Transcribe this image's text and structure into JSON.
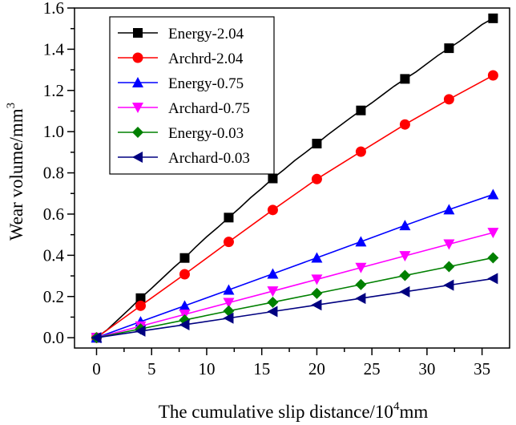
{
  "chart_data": {
    "type": "line",
    "title": "",
    "xlabel": "The cumulative slip distance/10",
    "xlabel_sup": "4",
    "xlabel_unit": "mm",
    "ylabel": "Wear volume/mm",
    "ylabel_sup": "3",
    "xlim": [
      -2,
      37.5
    ],
    "ylim": [
      -0.05,
      1.6
    ],
    "xticks": [
      0,
      5,
      10,
      15,
      20,
      25,
      30,
      35
    ],
    "yticks": [
      0.0,
      0.2,
      0.4,
      0.6,
      0.8,
      1.0,
      1.2,
      1.4,
      1.6
    ],
    "ytick_labels": [
      "0.0",
      "0.2",
      "0.4",
      "0.6",
      "0.8",
      "1.0",
      "1.2",
      "1.4",
      "1.6"
    ],
    "grid": false,
    "legend_position": "top-left",
    "series": [
      {
        "name": "Energy-2.04",
        "color": "#000000",
        "marker": "square",
        "line_x": [
          0,
          1,
          2,
          3,
          4,
          5,
          6,
          7,
          8,
          9,
          10,
          11,
          12,
          13,
          14,
          15,
          16,
          17,
          18,
          19,
          20,
          21,
          22,
          23,
          24,
          25,
          26,
          27,
          28,
          29,
          30,
          31,
          32,
          33,
          34,
          35,
          36
        ],
        "line_y": [
          0,
          0.04,
          0.09,
          0.14,
          0.192,
          0.24,
          0.29,
          0.34,
          0.387,
          0.44,
          0.49,
          0.535,
          0.583,
          0.63,
          0.68,
          0.725,
          0.773,
          0.815,
          0.86,
          0.9,
          0.942,
          0.985,
          1.025,
          1.065,
          1.103,
          1.14,
          1.18,
          1.22,
          1.256,
          1.29,
          1.33,
          1.37,
          1.405,
          1.44,
          1.48,
          1.52,
          1.55
        ],
        "x": [
          0,
          4,
          8,
          12,
          16,
          20,
          24,
          28,
          32,
          36
        ],
        "y": [
          0,
          0.192,
          0.387,
          0.583,
          0.773,
          0.942,
          1.103,
          1.256,
          1.405,
          1.55
        ]
      },
      {
        "name": "Archrd-2.04",
        "color": "#ff0000",
        "marker": "circle",
        "x": [
          0,
          4,
          8,
          12,
          16,
          20,
          24,
          28,
          32,
          36
        ],
        "y": [
          0,
          0.155,
          0.308,
          0.465,
          0.62,
          0.77,
          0.903,
          1.035,
          1.157,
          1.273
        ]
      },
      {
        "name": "Energy-0.75",
        "color": "#0000ff",
        "marker": "triangle-up",
        "x": [
          0,
          4,
          8,
          12,
          16,
          20,
          24,
          28,
          32,
          36
        ],
        "y": [
          0,
          0.078,
          0.155,
          0.232,
          0.31,
          0.388,
          0.466,
          0.545,
          0.622,
          0.695
        ]
      },
      {
        "name": "Archard-0.75",
        "color": "#ff00ff",
        "marker": "triangle-down",
        "x": [
          0,
          4,
          8,
          12,
          16,
          20,
          24,
          28,
          32,
          36
        ],
        "y": [
          0,
          0.056,
          0.113,
          0.17,
          0.226,
          0.283,
          0.34,
          0.397,
          0.454,
          0.51
        ]
      },
      {
        "name": "Energy-0.03",
        "color": "#008000",
        "marker": "diamond",
        "x": [
          0,
          4,
          8,
          12,
          16,
          20,
          24,
          28,
          32,
          36
        ],
        "y": [
          0,
          0.043,
          0.086,
          0.13,
          0.172,
          0.215,
          0.258,
          0.302,
          0.345,
          0.388
        ]
      },
      {
        "name": "Archard-0.03",
        "color": "#000080",
        "marker": "triangle-left",
        "x": [
          0,
          4,
          8,
          12,
          16,
          20,
          24,
          28,
          32,
          36
        ],
        "y": [
          0,
          0.032,
          0.063,
          0.095,
          0.127,
          0.159,
          0.191,
          0.223,
          0.255,
          0.287
        ]
      }
    ]
  }
}
